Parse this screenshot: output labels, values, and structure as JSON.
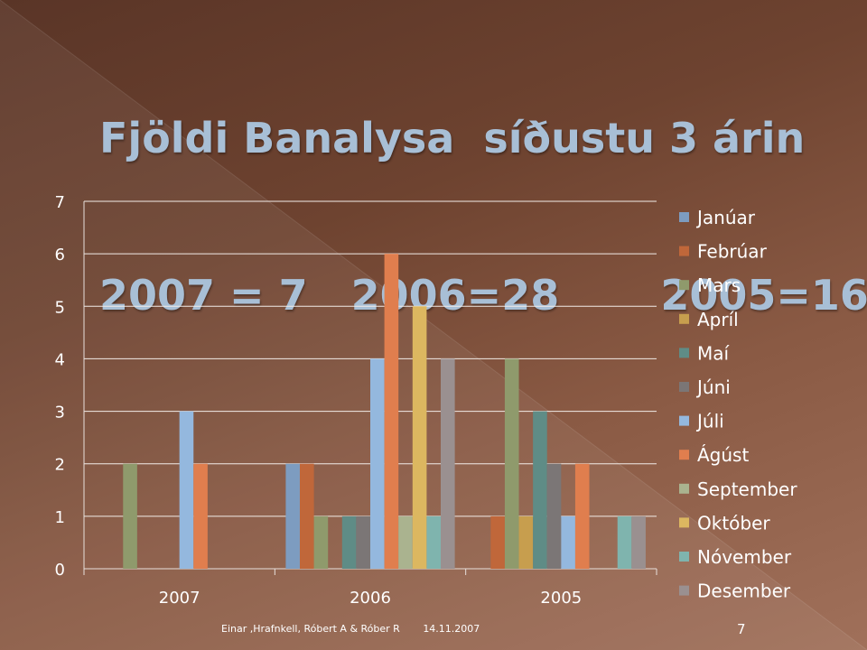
{
  "slide": {
    "title_line1": "Fjöldi Banalysa  síðustu 3 árin",
    "title_line2": "2007 = 7   2006=28       2005=16",
    "footer_authors": "Einar ,Hrafnkell, Róbert A & Róber R",
    "footer_date": "14.11.2007",
    "page_number": "7"
  },
  "chart_data": {
    "type": "bar",
    "title": "",
    "xlabel": "",
    "ylabel": "",
    "ylim": [
      0,
      7
    ],
    "yticks": [
      0,
      1,
      2,
      3,
      4,
      5,
      6,
      7
    ],
    "grid": true,
    "legend_position": "right",
    "categories": [
      "2007",
      "2006",
      "2005"
    ],
    "series": [
      {
        "name": "Janúar",
        "color": "#7d9cc0",
        "values": [
          0,
          2,
          0
        ]
      },
      {
        "name": "Febrúar",
        "color": "#c0673a",
        "values": [
          0,
          2,
          1
        ]
      },
      {
        "name": "Mars",
        "color": "#8f9a6c",
        "values": [
          2,
          1,
          4
        ]
      },
      {
        "name": "Apríl",
        "color": "#c79e4e",
        "values": [
          0,
          0,
          1
        ]
      },
      {
        "name": "Maí",
        "color": "#5f8c86",
        "values": [
          0,
          1,
          3
        ]
      },
      {
        "name": "Júni",
        "color": "#7b7676",
        "values": [
          0,
          1,
          2
        ]
      },
      {
        "name": "Júli",
        "color": "#94b8de",
        "values": [
          3,
          4,
          1
        ]
      },
      {
        "name": "Ágúst",
        "color": "#e07e4e",
        "values": [
          2,
          6,
          2
        ]
      },
      {
        "name": "September",
        "color": "#aab38f",
        "values": [
          0,
          1,
          0
        ]
      },
      {
        "name": "Október",
        "color": "#dcb760",
        "values": [
          0,
          5,
          0
        ]
      },
      {
        "name": "Nóvember",
        "color": "#7fb4ae",
        "values": [
          0,
          1,
          1
        ]
      },
      {
        "name": "Desember",
        "color": "#9a9090",
        "values": [
          0,
          4,
          1
        ]
      }
    ]
  }
}
